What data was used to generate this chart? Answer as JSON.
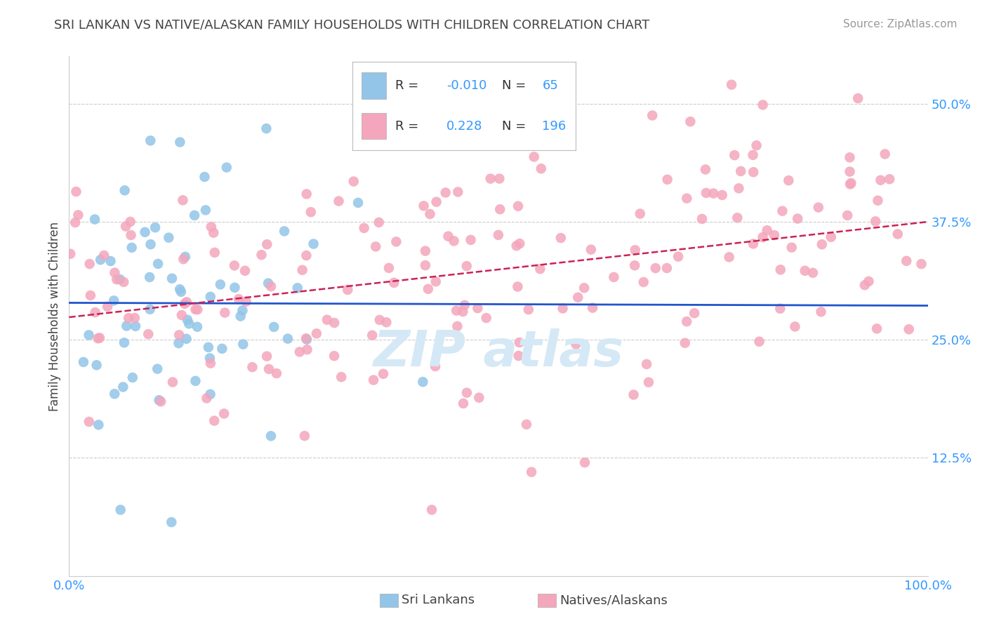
{
  "title": "SRI LANKAN VS NATIVE/ALASKAN FAMILY HOUSEHOLDS WITH CHILDREN CORRELATION CHART",
  "source": "Source: ZipAtlas.com",
  "ylabel": "Family Households with Children",
  "yticks": [
    0.0,
    0.125,
    0.25,
    0.375,
    0.5
  ],
  "ytick_labels": [
    "",
    "12.5%",
    "25.0%",
    "37.5%",
    "50.0%"
  ],
  "xlim": [
    0.0,
    1.0
  ],
  "ylim": [
    0.0,
    0.55
  ],
  "sri_lankan_color": "#92c5e8",
  "native_alaskan_color": "#f4a6bc",
  "legend_value_color": "#3399ff",
  "trend_blue_color": "#2255cc",
  "trend_pink_color": "#cc2255",
  "background_color": "#ffffff",
  "grid_color": "#cccccc",
  "watermark_color": "#d5e8f5",
  "sri_lankan_N": 65,
  "native_alaskan_N": 196,
  "sri_lankan_R": -0.01,
  "native_alaskan_R": 0.228,
  "tick_color": "#3399ff",
  "title_color": "#444444",
  "source_color": "#999999",
  "label_color": "#444444"
}
